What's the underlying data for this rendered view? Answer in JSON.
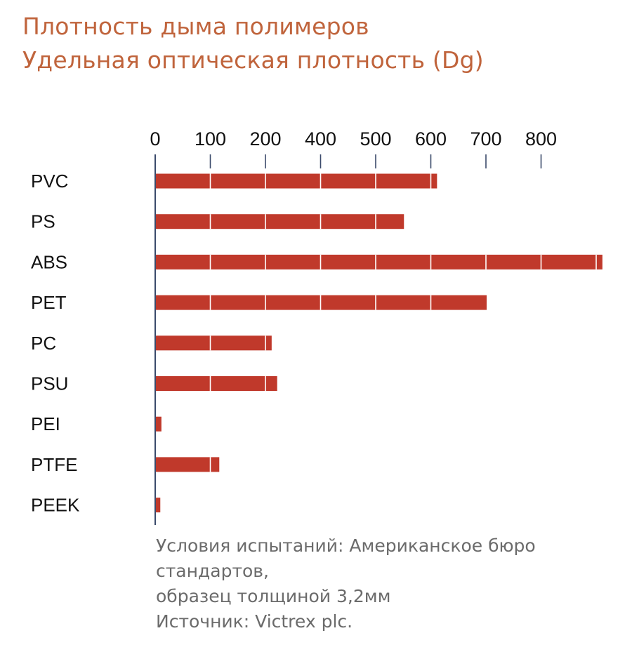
{
  "header": {
    "title_line1": "Плотность дыма полимеров",
    "title_line2": "Удельная оптическая плотность (Dg)"
  },
  "notes": {
    "line1": "Условия испытаний: Американское бюро",
    "line2": "стандартов,",
    "line3": "образец толщиной 3,2мм",
    "line4": "Источник: Victrex plc."
  },
  "colors": {
    "title": "#c0643c",
    "bar": "#c0392b",
    "axis": "#3a4a6b",
    "note": "#6b6b6b"
  },
  "chart_data": {
    "type": "bar",
    "orientation": "horizontal",
    "categories": [
      "PVC",
      "PS",
      "ABS",
      "PET",
      "PC",
      "PSU",
      "PEI",
      "PTFE",
      "PEEK"
    ],
    "values": [
      510,
      450,
      810,
      600,
      210,
      220,
      10,
      115,
      8
    ],
    "tick_labels": [
      "0",
      "100",
      "200",
      "400",
      "500",
      "600",
      "700",
      "800"
    ],
    "xlim": [
      0,
      800
    ],
    "axis_position": "top",
    "grid": false,
    "legend": "none"
  }
}
